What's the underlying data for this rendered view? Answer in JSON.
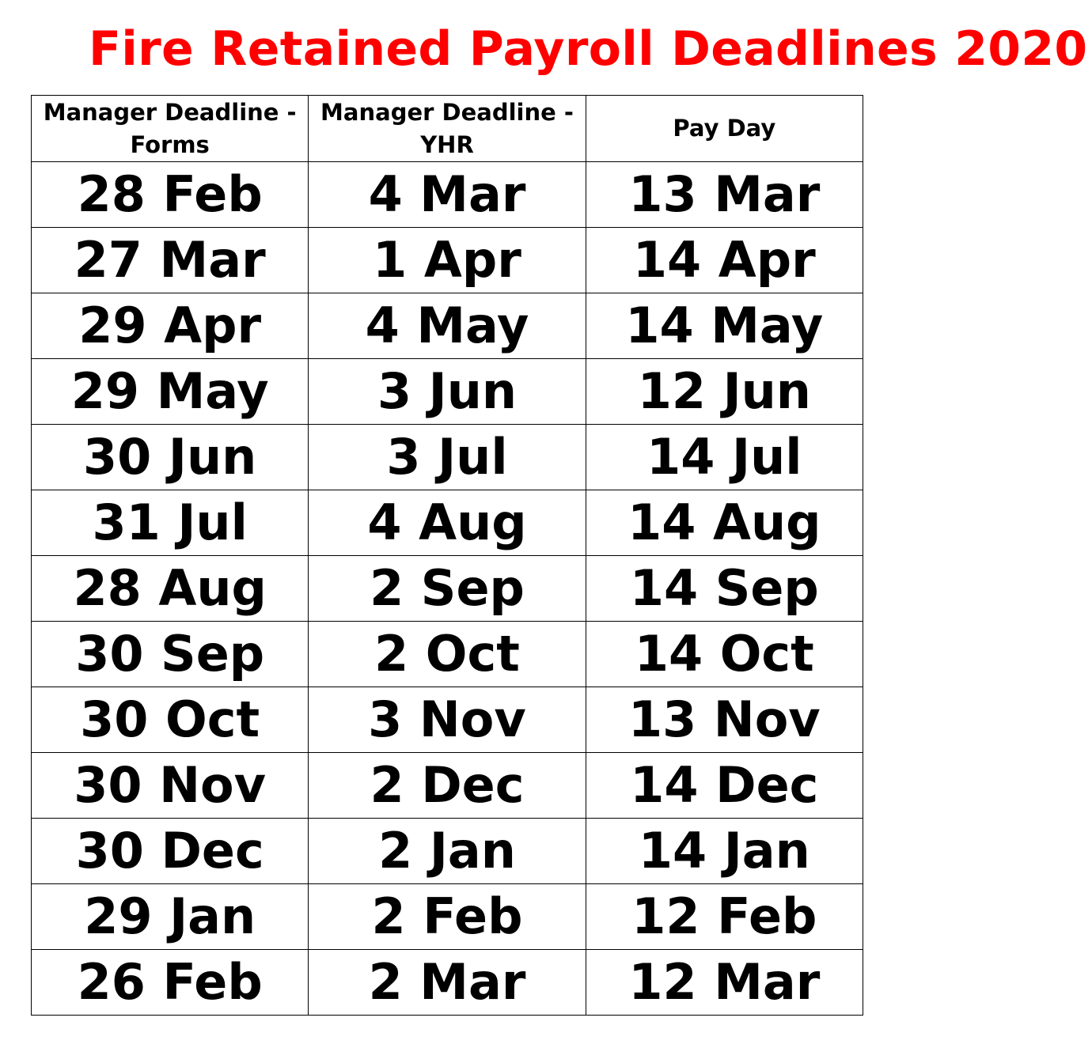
{
  "title": "Fire Retained Payroll Deadlines 2020",
  "colors": {
    "title": "#ff0000",
    "text": "#000000",
    "border": "#000000",
    "background": "#ffffff"
  },
  "table": {
    "headers": [
      "Manager Deadline - Forms",
      "Manager Deadline - YHR",
      "Pay Day"
    ],
    "rows": [
      [
        "28 Feb",
        "4 Mar",
        "13 Mar"
      ],
      [
        "27 Mar",
        "1 Apr",
        "14 Apr"
      ],
      [
        "29 Apr",
        "4 May",
        "14 May"
      ],
      [
        "29 May",
        "3 Jun",
        "12 Jun"
      ],
      [
        "30 Jun",
        "3 Jul",
        "14 Jul"
      ],
      [
        "31 Jul",
        "4 Aug",
        "14 Aug"
      ],
      [
        "28 Aug",
        "2 Sep",
        "14 Sep"
      ],
      [
        "30 Sep",
        "2 Oct",
        "14 Oct"
      ],
      [
        "30 Oct",
        "3 Nov",
        "13 Nov"
      ],
      [
        "30 Nov",
        "2 Dec",
        "14 Dec"
      ],
      [
        "30 Dec",
        "2 Jan",
        "14 Jan"
      ],
      [
        "29 Jan",
        "2 Feb",
        "12 Feb"
      ],
      [
        "26 Feb",
        "2 Mar",
        "12 Mar"
      ]
    ]
  }
}
